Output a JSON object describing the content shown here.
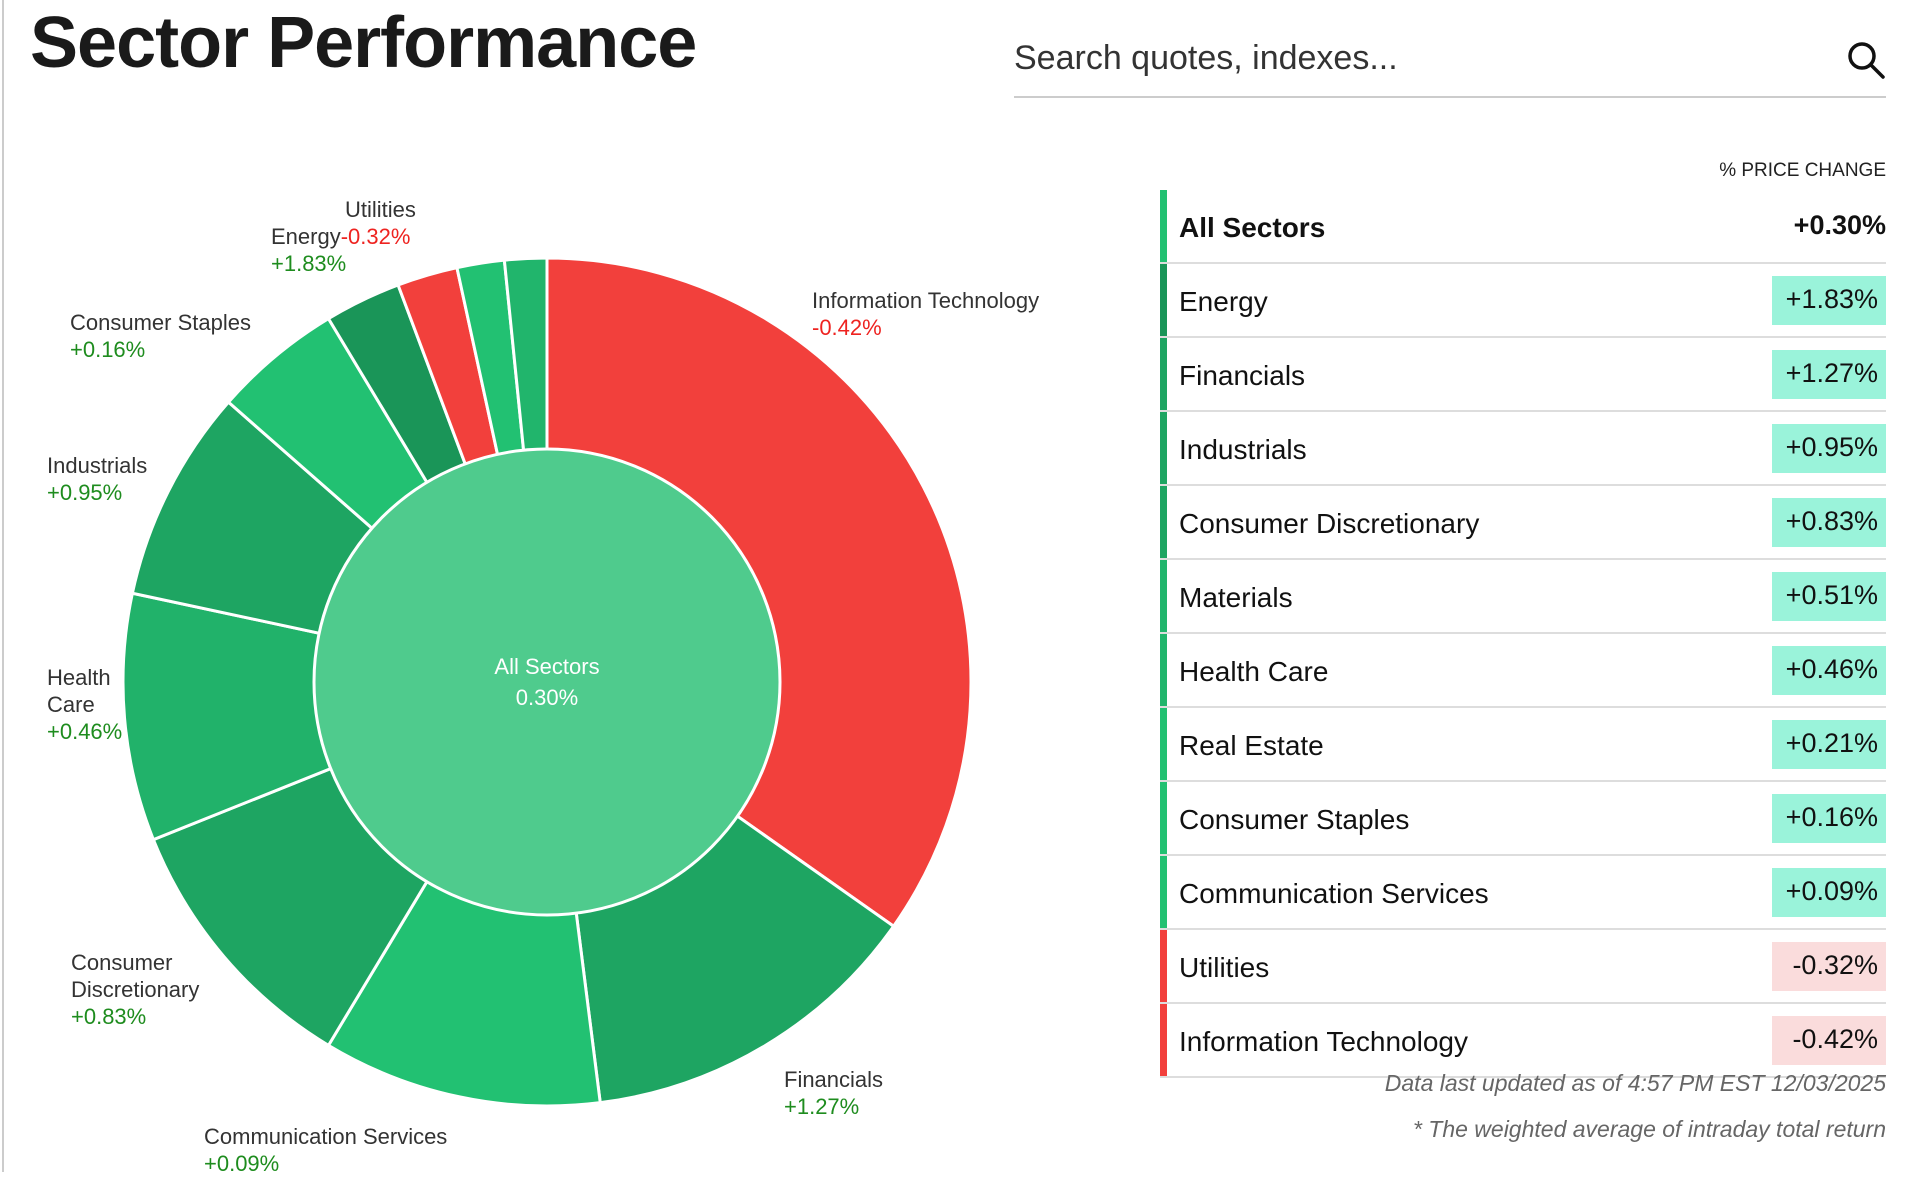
{
  "title": "Sector Performance",
  "search": {
    "placeholder": "Search quotes, indexes..."
  },
  "colors": {
    "pos_fill": "#9af3da",
    "neg_fill": "#fadcdc",
    "red": "#f2403c",
    "green_label": "#1e8c1e"
  },
  "table": {
    "header": "% PRICE CHANGE",
    "all": {
      "name": "All Sectors",
      "value": "+0.30%"
    },
    "rows": [
      {
        "name": "Energy",
        "value": "+1.83%",
        "bar": "#1a9558",
        "dir": "pos"
      },
      {
        "name": "Financials",
        "value": "+1.27%",
        "bar": "#1ea562",
        "dir": "pos"
      },
      {
        "name": "Industrials",
        "value": "+0.95%",
        "bar": "#1ea562",
        "dir": "pos"
      },
      {
        "name": "Consumer Discretionary",
        "value": "+0.83%",
        "bar": "#1ea562",
        "dir": "pos"
      },
      {
        "name": "Materials",
        "value": "+0.51%",
        "bar": "#21b56c",
        "dir": "pos"
      },
      {
        "name": "Health Care",
        "value": "+0.46%",
        "bar": "#21b56c",
        "dir": "pos"
      },
      {
        "name": "Real Estate",
        "value": "+0.21%",
        "bar": "#22c172",
        "dir": "pos"
      },
      {
        "name": "Consumer Staples",
        "value": "+0.16%",
        "bar": "#22c172",
        "dir": "pos"
      },
      {
        "name": "Communication Services",
        "value": "+0.09%",
        "bar": "#22c172",
        "dir": "pos"
      },
      {
        "name": "Utilities",
        "value": "-0.32%",
        "bar": "#f2403c",
        "dir": "neg"
      },
      {
        "name": "Information Technology",
        "value": "-0.42%",
        "bar": "#f2403c",
        "dir": "neg"
      }
    ]
  },
  "footer": {
    "updated": "Data last updated as of 4:57 PM EST 12/03/2025",
    "note": "* The weighted average of intraday total return"
  },
  "chart_data": {
    "type": "pie",
    "center_label": {
      "name": "All Sectors",
      "value": "0.30%"
    },
    "slices": [
      {
        "name": "Information Technology",
        "label_lines": [
          "Information Technology"
        ],
        "change": "-0.42%",
        "dir": "neg",
        "weight": 34.7,
        "color": "#f2403c"
      },
      {
        "name": "Financials",
        "label_lines": [
          "Financials"
        ],
        "change": "+1.27%",
        "dir": "pos",
        "weight": 13.2,
        "color": "#1ea562"
      },
      {
        "name": "Communication Services",
        "label_lines": [
          "Communication Services"
        ],
        "change": "+0.09%",
        "dir": "pos",
        "weight": 10.6,
        "color": "#22c172"
      },
      {
        "name": "Consumer Discretionary",
        "label_lines": [
          "Consumer",
          "Discretionary"
        ],
        "change": "+0.83%",
        "dir": "pos",
        "weight": 10.3,
        "color": "#1ea562"
      },
      {
        "name": "Health Care",
        "label_lines": [
          "Health",
          "Care"
        ],
        "change": "+0.46%",
        "dir": "pos",
        "weight": 9.4,
        "color": "#21b26a"
      },
      {
        "name": "Industrials",
        "label_lines": [
          "Industrials"
        ],
        "change": "+0.95%",
        "dir": "pos",
        "weight": 8.1,
        "color": "#1ea562"
      },
      {
        "name": "Consumer Staples",
        "label_lines": [
          "Consumer Staples"
        ],
        "change": "+0.16%",
        "dir": "pos",
        "weight": 4.9,
        "color": "#22c172"
      },
      {
        "name": "Energy",
        "label_lines": [
          "Energy"
        ],
        "change": "+1.83%",
        "dir": "pos",
        "weight": 2.9,
        "color": "#1a9558"
      },
      {
        "name": "Utilities",
        "label_lines": [
          "Utilities"
        ],
        "change": "-0.32%",
        "dir": "neg",
        "weight": 2.3,
        "color": "#f2403c"
      },
      {
        "name": "Real Estate",
        "label_lines": [],
        "change": "",
        "dir": "pos",
        "weight": 1.8,
        "color": "#22c172"
      },
      {
        "name": "Materials",
        "label_lines": [],
        "change": "",
        "dir": "pos",
        "weight": 1.6,
        "color": "#21b56c"
      }
    ],
    "center_color": "#4fcb8d"
  }
}
